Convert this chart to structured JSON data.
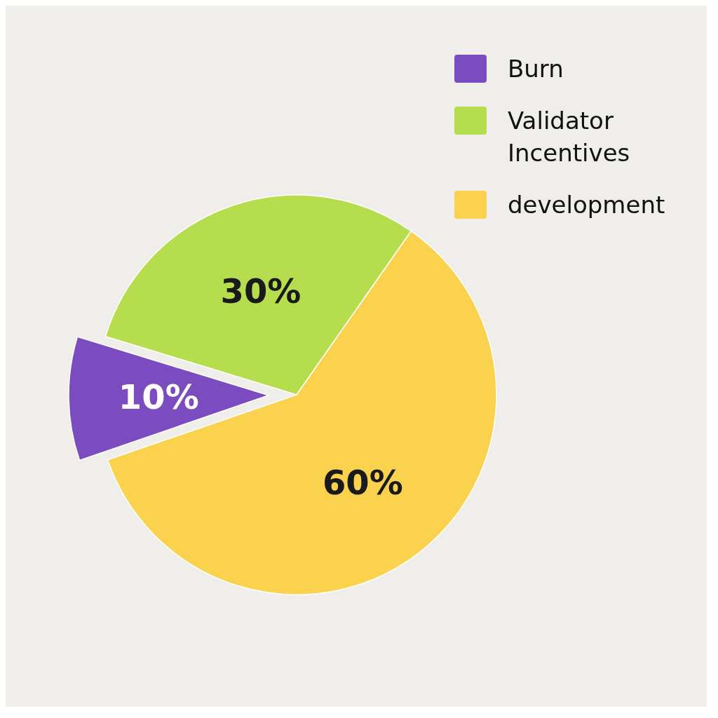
{
  "chart_data": {
    "type": "pie",
    "categories": [
      "Burn",
      "Validator Incentives",
      "development"
    ],
    "values": [
      10,
      30,
      60
    ],
    "value_labels": [
      "10%",
      "30%",
      "60%"
    ],
    "colors": [
      "#7a4cc0",
      "#b5dd4e",
      "#fbd24e"
    ],
    "legend": "top right"
  }
}
